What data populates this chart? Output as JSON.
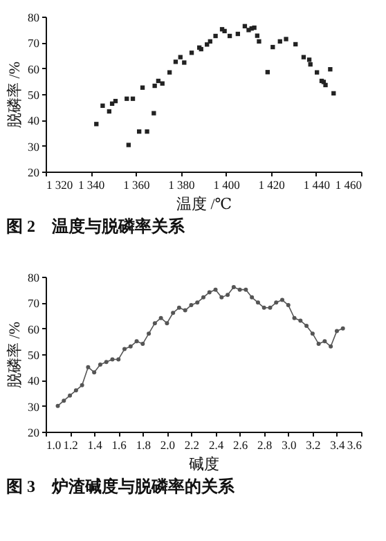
{
  "chart_data": [
    {
      "type": "scatter",
      "title": "图 2　温度与脱磷率关系",
      "xlabel": "温度 /℃",
      "ylabel": "脱磷率 /%",
      "marker": "square",
      "x": [
        1342.5,
        1345.3,
        1348.2,
        1349.5,
        1351,
        1356,
        1358.7,
        1356.8,
        1361.5,
        1365,
        1363,
        1368,
        1368.4,
        1370,
        1371.8,
        1375,
        1377.7,
        1379.8,
        1381.5,
        1384.8,
        1388.2,
        1389,
        1391.6,
        1393,
        1395.4,
        1398.3,
        1399.4,
        1401.7,
        1405.3,
        1408.4,
        1410.1,
        1411.4,
        1412.6,
        1413.9,
        1414.7,
        1418.5,
        1420.8,
        1424,
        1426.7,
        1430.9,
        1434.5,
        1437,
        1437.5,
        1440.4,
        1442.5,
        1443.4,
        1444.2,
        1446.3,
        1447.8
      ],
      "series": [
        {
          "color": "#222222",
          "values": [
            38.4,
            45.5,
            43.3,
            46.3,
            47.3,
            48.2,
            48.2,
            30.3,
            35.5,
            35.5,
            52.5,
            42.6,
            53.2,
            55.1,
            54.1,
            58.4,
            62.5,
            64.3,
            62.2,
            66,
            68,
            67.4,
            69.2,
            70.4,
            72.5,
            75.1,
            74.4,
            72.5,
            73.3,
            76.3,
            74.8,
            75.4,
            75.7,
            72.6,
            70.4,
            58.5,
            68.2,
            70.4,
            71.3,
            69.3,
            64.3,
            63.3,
            61.5,
            58.4,
            55.1,
            54.7,
            53.5,
            59.6,
            50.3
          ]
        }
      ],
      "xlim": [
        1320,
        1460
      ],
      "xticks": [
        {
          "value": 1320,
          "label": "1 320"
        },
        {
          "value": 1340,
          "label": "1 340"
        },
        {
          "value": 1360,
          "label": "1 360"
        },
        {
          "value": 1380,
          "label": "1 380"
        },
        {
          "value": 1400,
          "label": "1 400"
        },
        {
          "value": 1420,
          "label": "1 420"
        },
        {
          "value": 1440,
          "label": "1 440"
        },
        {
          "value": 1460,
          "label": "1 460"
        }
      ],
      "ylim": [
        20,
        80
      ],
      "yticks": [
        20,
        30,
        40,
        50,
        60,
        70,
        80
      ]
    },
    {
      "type": "line",
      "title": "图 3　炉渣碱度与脱磷率的关系",
      "xlabel": "碱度",
      "ylabel": "脱磷率 /%",
      "marker": "circle",
      "x": [
        1.1,
        1.15,
        1.2,
        1.25,
        1.3,
        1.35,
        1.4,
        1.45,
        1.5,
        1.55,
        1.6,
        1.65,
        1.7,
        1.75,
        1.8,
        1.85,
        1.9,
        1.95,
        2.0,
        2.05,
        2.1,
        2.15,
        2.2,
        2.25,
        2.3,
        2.35,
        2.4,
        2.45,
        2.5,
        2.55,
        2.6,
        2.65,
        2.7,
        2.75,
        2.8,
        2.85,
        2.9,
        2.95,
        3.0,
        3.05,
        3.1,
        3.15,
        3.2,
        3.25,
        3.3,
        3.35,
        3.4,
        3.45
      ],
      "series": [
        {
          "color": "#555555",
          "values": [
            30,
            32,
            34,
            36,
            38,
            45,
            43,
            46,
            47,
            48,
            48,
            52,
            53,
            55,
            54,
            58,
            62,
            64,
            62,
            66,
            68,
            67,
            69,
            70,
            72,
            74,
            75,
            72,
            73,
            76,
            75,
            75,
            72,
            70,
            68,
            68,
            70,
            71,
            69,
            64,
            63,
            61,
            58,
            54,
            55,
            53,
            59,
            60
          ]
        }
      ],
      "xlim": [
        1.0,
        3.6
      ],
      "xticks": [
        {
          "value": 1.0,
          "label": "1.0"
        },
        1.2,
        1.4,
        1.6,
        1.8,
        {
          "value": 2.0,
          "label": "2.0"
        },
        2.2,
        2.4,
        2.6,
        2.8,
        {
          "value": 3.0,
          "label": "3.0"
        },
        3.2,
        3.4,
        3.6
      ],
      "ylim": [
        20,
        80
      ],
      "yticks": [
        20,
        30,
        40,
        50,
        60,
        70,
        80
      ]
    }
  ]
}
